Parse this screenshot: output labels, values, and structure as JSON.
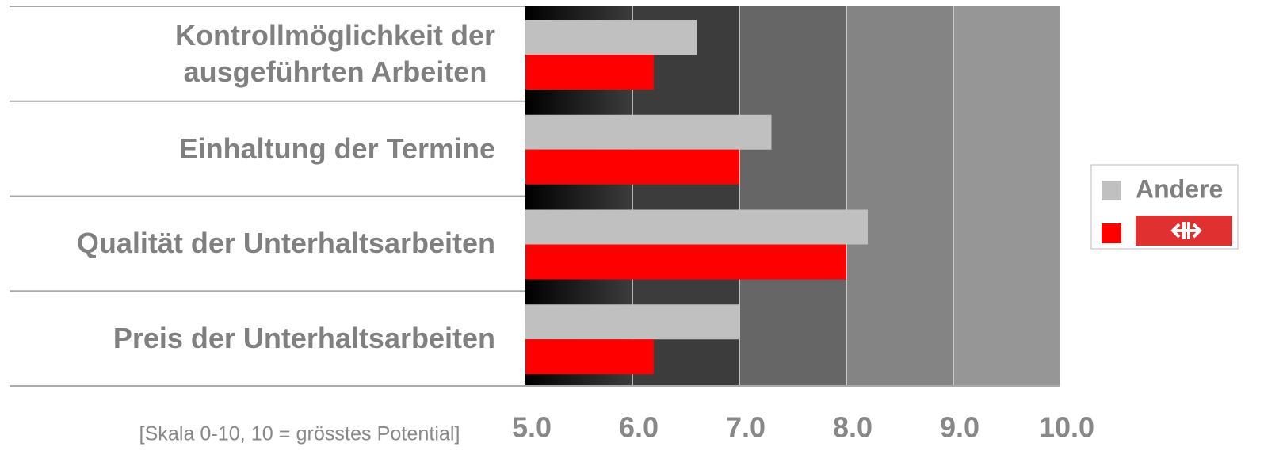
{
  "chart_data": {
    "type": "hbar",
    "categories": [
      "Kontrollmöglichkeit der\nausgeführten Arbeiten",
      "Einhaltung der Termine",
      "Qualität der Unterhaltsarbeiten",
      "Preis der Unterhaltsarbeiten"
    ],
    "series": [
      {
        "name": "Andere",
        "color": "#c0c0c0",
        "values": [
          6.6,
          7.3,
          8.2,
          7.0
        ]
      },
      {
        "color": "#ff0000",
        "values": [
          6.2,
          7.0,
          8.0,
          6.2
        ]
      }
    ],
    "xlim": [
      5,
      10
    ],
    "xticks": [
      {
        "value": 5,
        "label": "5.0"
      },
      {
        "value": 6,
        "label": "6.0"
      },
      {
        "value": 7,
        "label": "7.0"
      },
      {
        "value": 8,
        "label": "8.0"
      },
      {
        "value": 9,
        "label": "9.0"
      },
      {
        "value": 10,
        "label": "10.0"
      }
    ],
    "note": "[Skala 0-10, 10 = grösstes Potential]",
    "grid": true,
    "legend": "right"
  }
}
